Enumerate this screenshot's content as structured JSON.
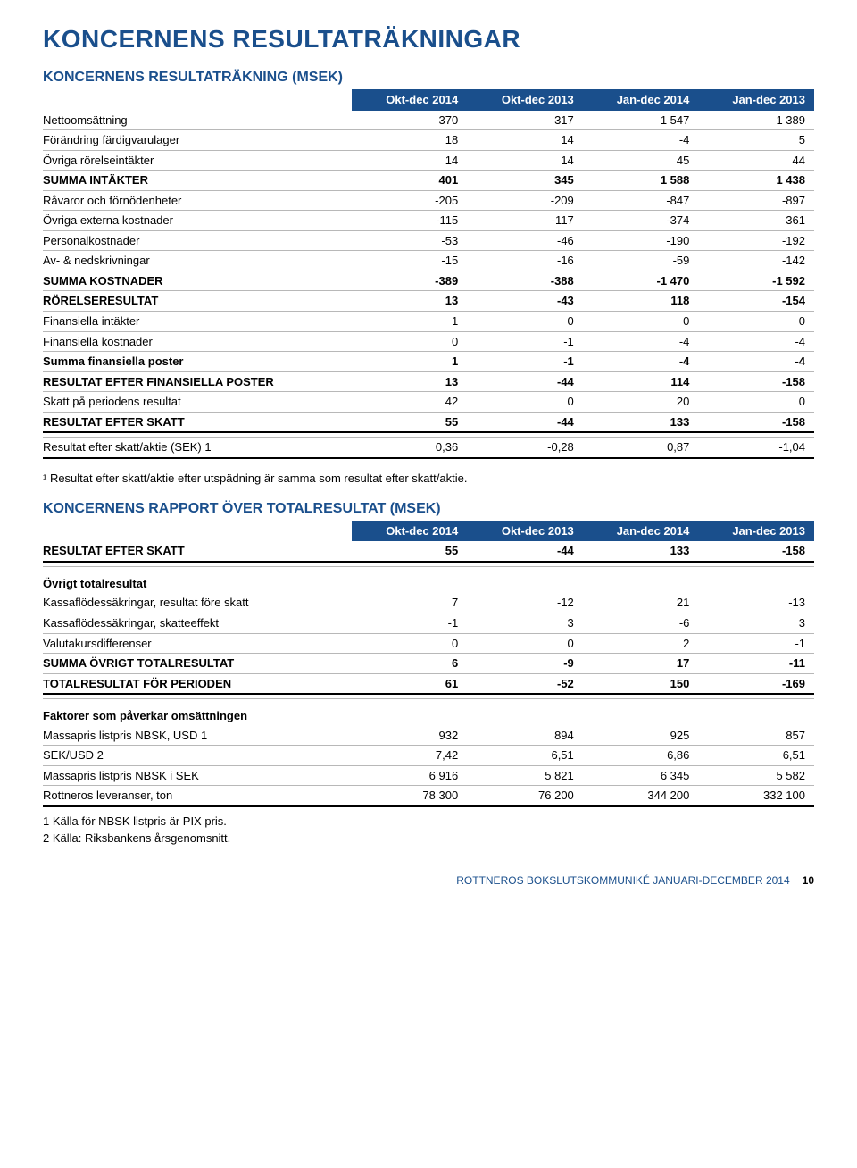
{
  "colors": {
    "brand_blue": "#1a4f8c",
    "row_border": "#b8b8b8",
    "thick_border": "#000000",
    "bg": "#ffffff",
    "text": "#000000"
  },
  "typography": {
    "title_fontsize_pt": 21,
    "section_fontsize_pt": 12,
    "body_fontsize_pt": 10
  },
  "page_title": "KONCERNENS RESULTATRÄKNINGAR",
  "footer": {
    "text": "ROTTNEROS BOKSLUTSKOMMUNIKÉ JANUARI-DECEMBER 2014",
    "page_number": "10"
  },
  "table1": {
    "title": "KONCERNENS RESULTATRÄKNING (MSEK)",
    "columns": [
      "Okt-dec 2014",
      "Okt-dec 2013",
      "Jan-dec 2014",
      "Jan-dec 2013"
    ],
    "rows": [
      {
        "label": "Nettoomsättning",
        "v": [
          "370",
          "317",
          "1 547",
          "1 389"
        ]
      },
      {
        "label": "Förändring färdigvarulager",
        "v": [
          "18",
          "14",
          "-4",
          "5"
        ]
      },
      {
        "label": "Övriga rörelseintäkter",
        "v": [
          "14",
          "14",
          "45",
          "44"
        ]
      },
      {
        "label": "SUMMA INTÄKTER",
        "v": [
          "401",
          "345",
          "1 588",
          "1 438"
        ],
        "bold": true
      },
      {
        "label": "Råvaror och förnödenheter",
        "v": [
          "-205",
          "-209",
          "-847",
          "-897"
        ]
      },
      {
        "label": "Övriga externa kostnader",
        "v": [
          "-115",
          "-117",
          "-374",
          "-361"
        ]
      },
      {
        "label": "Personalkostnader",
        "v": [
          "-53",
          "-46",
          "-190",
          "-192"
        ]
      },
      {
        "label": "Av- & nedskrivningar",
        "v": [
          "-15",
          "-16",
          "-59",
          "-142"
        ]
      },
      {
        "label": "SUMMA KOSTNADER",
        "v": [
          "-389",
          "-388",
          "-1 470",
          "-1 592"
        ],
        "bold": true
      },
      {
        "label": "RÖRELSERESULTAT",
        "v": [
          "13",
          "-43",
          "118",
          "-154"
        ],
        "bold": true
      },
      {
        "label": "Finansiella intäkter",
        "v": [
          "1",
          "0",
          "0",
          "0"
        ]
      },
      {
        "label": "Finansiella kostnader",
        "v": [
          "0",
          "-1",
          "-4",
          "-4"
        ]
      },
      {
        "label": "Summa finansiella poster",
        "v": [
          "1",
          "-1",
          "-4",
          "-4"
        ],
        "bold": true
      },
      {
        "label": "RESULTAT EFTER FINANSIELLA POSTER",
        "v": [
          "13",
          "-44",
          "114",
          "-158"
        ],
        "bold": true
      },
      {
        "label": "Skatt på periodens resultat",
        "v": [
          "42",
          "0",
          "20",
          "0"
        ]
      },
      {
        "label": "RESULTAT EFTER SKATT",
        "v": [
          "55",
          "-44",
          "133",
          "-158"
        ],
        "bold": true,
        "thick": true
      }
    ],
    "after_gap_row": {
      "label": "Resultat efter skatt/aktie (SEK) 1",
      "v": [
        "0,36",
        "-0,28",
        "0,87",
        "-1,04"
      ],
      "thick": true
    },
    "footnote": "¹ Resultat efter skatt/aktie efter utspädning är samma som resultat efter skatt/aktie."
  },
  "table2": {
    "title": "KONCERNENS RAPPORT ÖVER TOTALRESULTAT (MSEK)",
    "columns": [
      "Okt-dec 2014",
      "Okt-dec 2013",
      "Jan-dec 2014",
      "Jan-dec 2013"
    ],
    "row_first": {
      "label": "RESULTAT EFTER SKATT",
      "v": [
        "55",
        "-44",
        "133",
        "-158"
      ],
      "bold": true,
      "thick": true
    },
    "section_a": {
      "heading": "Övrigt totalresultat",
      "rows": [
        {
          "label": "Kassaflödessäkringar, resultat före skatt",
          "v": [
            "7",
            "-12",
            "21",
            "-13"
          ]
        },
        {
          "label": "Kassaflödessäkringar, skatteeffekt",
          "v": [
            "-1",
            "3",
            "-6",
            "3"
          ]
        },
        {
          "label": "Valutakursdifferenser",
          "v": [
            "0",
            "0",
            "2",
            "-1"
          ]
        },
        {
          "label": "SUMMA ÖVRIGT TOTALRESULTAT",
          "v": [
            "6",
            "-9",
            "17",
            "-11"
          ],
          "bold": true
        },
        {
          "label": "TOTALRESULTAT FÖR PERIODEN",
          "v": [
            "61",
            "-52",
            "150",
            "-169"
          ],
          "bold": true,
          "thick": true
        }
      ]
    },
    "section_b": {
      "heading": "Faktorer som påverkar omsättningen",
      "rows": [
        {
          "label": "Massapris listpris NBSK, USD 1",
          "v": [
            "932",
            "894",
            "925",
            "857"
          ]
        },
        {
          "label": "SEK/USD 2",
          "v": [
            "7,42",
            "6,51",
            "6,86",
            "6,51"
          ]
        },
        {
          "label": "Massapris listpris NBSK i SEK",
          "v": [
            "6 916",
            "5 821",
            "6 345",
            "5 582"
          ]
        },
        {
          "label": "Rottneros leveranser, ton",
          "v": [
            "78 300",
            "76 200",
            "344 200",
            "332 100"
          ],
          "thick": true
        }
      ],
      "footnotes": [
        "1 Källa för NBSK listpris är PIX pris.",
        "2 Källa: Riksbankens årsgenomsnitt."
      ]
    }
  }
}
